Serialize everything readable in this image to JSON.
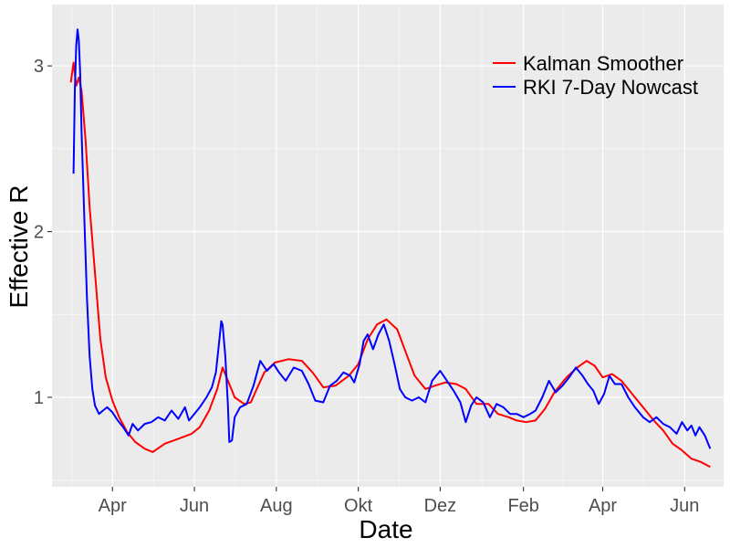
{
  "chart_data": {
    "type": "line",
    "xlabel": "Date",
    "ylabel": "Effective R",
    "x_ticks": [
      "Apr",
      "Jun",
      "Aug",
      "Okt",
      "Dez",
      "Feb",
      "Apr",
      "Jun"
    ],
    "x_tick_dates": [
      "2020-04-01",
      "2020-06-01",
      "2020-08-01",
      "2020-10-01",
      "2020-12-01",
      "2021-02-01",
      "2021-04-01",
      "2021-06-01"
    ],
    "xlim": [
      "2020-02-16",
      "2021-06-30"
    ],
    "y_ticks": [
      1,
      2,
      3
    ],
    "ylim": [
      0.46,
      3.37
    ],
    "grid": true,
    "legend_position": "top-right",
    "series": [
      {
        "name": "Kalman Smoother",
        "color": "#FF0000",
        "points": [
          [
            "2020-03-01",
            2.9
          ],
          [
            "2020-03-03",
            3.02
          ],
          [
            "2020-03-05",
            2.88
          ],
          [
            "2020-03-07",
            2.93
          ],
          [
            "2020-03-09",
            2.85
          ],
          [
            "2020-03-12",
            2.55
          ],
          [
            "2020-03-15",
            2.15
          ],
          [
            "2020-03-19",
            1.75
          ],
          [
            "2020-03-23",
            1.35
          ],
          [
            "2020-03-27",
            1.12
          ],
          [
            "2020-04-01",
            0.98
          ],
          [
            "2020-04-06",
            0.88
          ],
          [
            "2020-04-12",
            0.79
          ],
          [
            "2020-04-18",
            0.73
          ],
          [
            "2020-04-25",
            0.69
          ],
          [
            "2020-05-01",
            0.67
          ],
          [
            "2020-05-10",
            0.72
          ],
          [
            "2020-05-20",
            0.75
          ],
          [
            "2020-05-30",
            0.78
          ],
          [
            "2020-06-05",
            0.82
          ],
          [
            "2020-06-12",
            0.92
          ],
          [
            "2020-06-18",
            1.05
          ],
          [
            "2020-06-22",
            1.18
          ],
          [
            "2020-06-26",
            1.1
          ],
          [
            "2020-07-01",
            1.0
          ],
          [
            "2020-07-08",
            0.96
          ],
          [
            "2020-07-13",
            0.97
          ],
          [
            "2020-07-18",
            1.06
          ],
          [
            "2020-07-23",
            1.15
          ],
          [
            "2020-07-31",
            1.21
          ],
          [
            "2020-08-10",
            1.23
          ],
          [
            "2020-08-20",
            1.22
          ],
          [
            "2020-08-28",
            1.15
          ],
          [
            "2020-09-05",
            1.06
          ],
          [
            "2020-09-14",
            1.07
          ],
          [
            "2020-09-24",
            1.13
          ],
          [
            "2020-10-01",
            1.2
          ],
          [
            "2020-10-08",
            1.35
          ],
          [
            "2020-10-15",
            1.44
          ],
          [
            "2020-10-22",
            1.47
          ],
          [
            "2020-10-30",
            1.41
          ],
          [
            "2020-11-05",
            1.28
          ],
          [
            "2020-11-12",
            1.13
          ],
          [
            "2020-11-20",
            1.05
          ],
          [
            "2020-11-27",
            1.07
          ],
          [
            "2020-12-05",
            1.09
          ],
          [
            "2020-12-13",
            1.08
          ],
          [
            "2020-12-20",
            1.05
          ],
          [
            "2020-12-28",
            0.96
          ],
          [
            "2021-01-06",
            0.96
          ],
          [
            "2021-01-13",
            0.9
          ],
          [
            "2021-01-21",
            0.88
          ],
          [
            "2021-01-27",
            0.86
          ],
          [
            "2021-02-03",
            0.85
          ],
          [
            "2021-02-10",
            0.86
          ],
          [
            "2021-02-17",
            0.93
          ],
          [
            "2021-02-24",
            1.03
          ],
          [
            "2021-03-05",
            1.12
          ],
          [
            "2021-03-13",
            1.18
          ],
          [
            "2021-03-20",
            1.22
          ],
          [
            "2021-03-26",
            1.19
          ],
          [
            "2021-04-01",
            1.12
          ],
          [
            "2021-04-08",
            1.14
          ],
          [
            "2021-04-15",
            1.1
          ],
          [
            "2021-04-22",
            1.03
          ],
          [
            "2021-05-01",
            0.94
          ],
          [
            "2021-05-09",
            0.86
          ],
          [
            "2021-05-16",
            0.8
          ],
          [
            "2021-05-23",
            0.72
          ],
          [
            "2021-05-30",
            0.68
          ],
          [
            "2021-06-06",
            0.63
          ],
          [
            "2021-06-13",
            0.61
          ],
          [
            "2021-06-20",
            0.58
          ]
        ]
      },
      {
        "name": "RKI 7-Day Nowcast",
        "color": "#0000FF",
        "points": [
          [
            "2020-03-03",
            2.35
          ],
          [
            "2020-03-04",
            2.85
          ],
          [
            "2020-03-05",
            3.12
          ],
          [
            "2020-03-06",
            3.22
          ],
          [
            "2020-03-07",
            3.15
          ],
          [
            "2020-03-08",
            2.95
          ],
          [
            "2020-03-09",
            2.6
          ],
          [
            "2020-03-11",
            2.1
          ],
          [
            "2020-03-13",
            1.6
          ],
          [
            "2020-03-15",
            1.25
          ],
          [
            "2020-03-17",
            1.05
          ],
          [
            "2020-03-19",
            0.95
          ],
          [
            "2020-03-22",
            0.9
          ],
          [
            "2020-03-25",
            0.92
          ],
          [
            "2020-03-28",
            0.94
          ],
          [
            "2020-04-01",
            0.91
          ],
          [
            "2020-04-05",
            0.86
          ],
          [
            "2020-04-09",
            0.82
          ],
          [
            "2020-04-13",
            0.77
          ],
          [
            "2020-04-16",
            0.84
          ],
          [
            "2020-04-20",
            0.8
          ],
          [
            "2020-04-25",
            0.84
          ],
          [
            "2020-04-30",
            0.85
          ],
          [
            "2020-05-05",
            0.88
          ],
          [
            "2020-05-10",
            0.86
          ],
          [
            "2020-05-15",
            0.92
          ],
          [
            "2020-05-20",
            0.87
          ],
          [
            "2020-05-25",
            0.94
          ],
          [
            "2020-05-28",
            0.86
          ],
          [
            "2020-06-01",
            0.9
          ],
          [
            "2020-06-05",
            0.94
          ],
          [
            "2020-06-10",
            1.0
          ],
          [
            "2020-06-14",
            1.06
          ],
          [
            "2020-06-17",
            1.15
          ],
          [
            "2020-06-19",
            1.3
          ],
          [
            "2020-06-21",
            1.46
          ],
          [
            "2020-06-22",
            1.44
          ],
          [
            "2020-06-24",
            1.25
          ],
          [
            "2020-06-26",
            0.95
          ],
          [
            "2020-06-27",
            0.73
          ],
          [
            "2020-06-29",
            0.74
          ],
          [
            "2020-07-01",
            0.88
          ],
          [
            "2020-07-05",
            0.94
          ],
          [
            "2020-07-10",
            0.96
          ],
          [
            "2020-07-15",
            1.07
          ],
          [
            "2020-07-20",
            1.22
          ],
          [
            "2020-07-25",
            1.16
          ],
          [
            "2020-07-30",
            1.2
          ],
          [
            "2020-08-03",
            1.15
          ],
          [
            "2020-08-08",
            1.1
          ],
          [
            "2020-08-14",
            1.18
          ],
          [
            "2020-08-20",
            1.16
          ],
          [
            "2020-08-25",
            1.08
          ],
          [
            "2020-08-30",
            0.98
          ],
          [
            "2020-09-05",
            0.97
          ],
          [
            "2020-09-10",
            1.07
          ],
          [
            "2020-09-15",
            1.1
          ],
          [
            "2020-09-20",
            1.15
          ],
          [
            "2020-09-25",
            1.13
          ],
          [
            "2020-09-28",
            1.09
          ],
          [
            "2020-10-02",
            1.2
          ],
          [
            "2020-10-05",
            1.34
          ],
          [
            "2020-10-08",
            1.38
          ],
          [
            "2020-10-12",
            1.29
          ],
          [
            "2020-10-16",
            1.38
          ],
          [
            "2020-10-20",
            1.44
          ],
          [
            "2020-10-24",
            1.34
          ],
          [
            "2020-10-28",
            1.2
          ],
          [
            "2020-11-01",
            1.05
          ],
          [
            "2020-11-05",
            1.0
          ],
          [
            "2020-11-10",
            0.98
          ],
          [
            "2020-11-15",
            1.0
          ],
          [
            "2020-11-20",
            0.97
          ],
          [
            "2020-11-25",
            1.1
          ],
          [
            "2020-12-01",
            1.16
          ],
          [
            "2020-12-06",
            1.1
          ],
          [
            "2020-12-11",
            1.04
          ],
          [
            "2020-12-16",
            0.97
          ],
          [
            "2020-12-20",
            0.85
          ],
          [
            "2020-12-24",
            0.95
          ],
          [
            "2020-12-28",
            1.0
          ],
          [
            "2021-01-02",
            0.97
          ],
          [
            "2021-01-07",
            0.88
          ],
          [
            "2021-01-12",
            0.96
          ],
          [
            "2021-01-17",
            0.94
          ],
          [
            "2021-01-22",
            0.9
          ],
          [
            "2021-01-27",
            0.9
          ],
          [
            "2021-02-01",
            0.88
          ],
          [
            "2021-02-06",
            0.9
          ],
          [
            "2021-02-10",
            0.92
          ],
          [
            "2021-02-15",
            1.0
          ],
          [
            "2021-02-20",
            1.1
          ],
          [
            "2021-02-25",
            1.03
          ],
          [
            "2021-03-02",
            1.07
          ],
          [
            "2021-03-07",
            1.12
          ],
          [
            "2021-03-12",
            1.18
          ],
          [
            "2021-03-17",
            1.13
          ],
          [
            "2021-03-21",
            1.08
          ],
          [
            "2021-03-25",
            1.04
          ],
          [
            "2021-03-29",
            0.96
          ],
          [
            "2021-04-02",
            1.02
          ],
          [
            "2021-04-06",
            1.13
          ],
          [
            "2021-04-10",
            1.08
          ],
          [
            "2021-04-15",
            1.08
          ],
          [
            "2021-04-20",
            1.0
          ],
          [
            "2021-04-25",
            0.94
          ],
          [
            "2021-05-01",
            0.88
          ],
          [
            "2021-05-06",
            0.85
          ],
          [
            "2021-05-11",
            0.88
          ],
          [
            "2021-05-16",
            0.84
          ],
          [
            "2021-05-21",
            0.82
          ],
          [
            "2021-05-26",
            0.78
          ],
          [
            "2021-05-30",
            0.85
          ],
          [
            "2021-06-03",
            0.8
          ],
          [
            "2021-06-06",
            0.83
          ],
          [
            "2021-06-09",
            0.77
          ],
          [
            "2021-06-12",
            0.82
          ],
          [
            "2021-06-16",
            0.77
          ],
          [
            "2021-06-20",
            0.69
          ]
        ]
      }
    ]
  },
  "colors": {
    "panel_background": "#EBEBEB",
    "gridline": "#FFFFFF",
    "tick_text": "#4D4D4D",
    "tick_mark": "#333333"
  }
}
